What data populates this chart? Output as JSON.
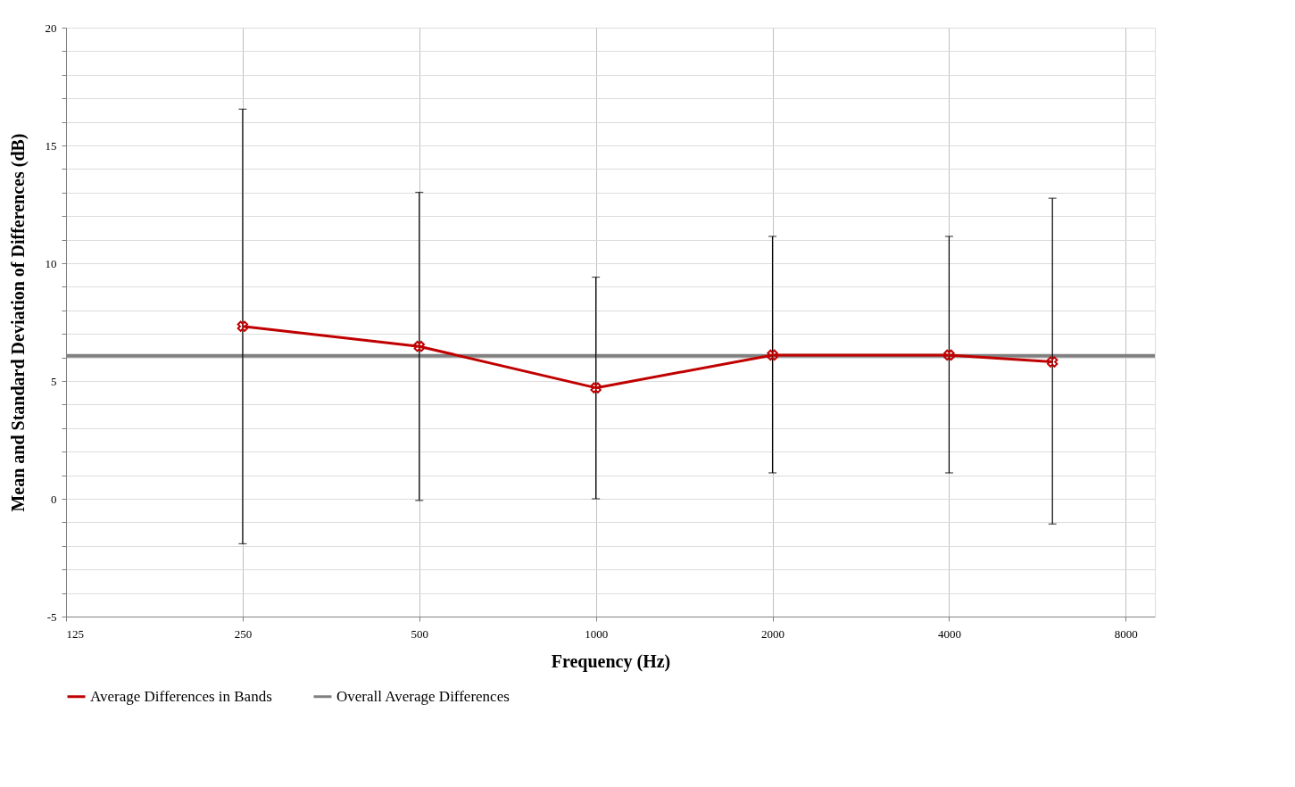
{
  "chart_data": {
    "type": "line",
    "xlabel": "Frequency (Hz)",
    "ylabel": "Mean and Standard Deviation of Differences (dB)",
    "x": [
      250,
      500,
      1000,
      2000,
      4000,
      6000
    ],
    "series": [
      {
        "name": "Average Differences in Bands",
        "color": "#c00000",
        "values": [
          7.32,
          6.47,
          4.71,
          6.1,
          6.1,
          5.81
        ],
        "errors": [
          [
            -1.91,
            16.54
          ],
          [
            -0.07,
            13.01
          ],
          [
            0.0,
            9.41
          ],
          [
            1.1,
            11.14
          ],
          [
            1.1,
            11.14
          ],
          [
            -1.07,
            12.76
          ]
        ]
      }
    ],
    "ref_lines": [
      {
        "axis": "y",
        "value": 6.07,
        "label": "Overall Average Differences",
        "color": "#808080"
      }
    ],
    "log": "x",
    "xlim": [
      125,
      8970
    ],
    "xticks": [
      125,
      250,
      500,
      1000,
      2000,
      4000,
      8000
    ],
    "ylim": [
      -5,
      20
    ],
    "yticks": [
      -5,
      {
        "value": -4,
        "label": null
      },
      {
        "value": -3,
        "label": null
      },
      {
        "value": -2,
        "label": null
      },
      {
        "value": -1,
        "label": null
      },
      0,
      {
        "value": 1,
        "label": null
      },
      {
        "value": 2,
        "label": null
      },
      {
        "value": 3,
        "label": null
      },
      {
        "value": 4,
        "label": null
      },
      5,
      {
        "value": 6,
        "label": null
      },
      {
        "value": 7,
        "label": null
      },
      {
        "value": 8,
        "label": null
      },
      {
        "value": 9,
        "label": null
      },
      10,
      {
        "value": 11,
        "label": null
      },
      {
        "value": 12,
        "label": null
      },
      {
        "value": 13,
        "label": null
      },
      {
        "value": 14,
        "label": null
      },
      15,
      {
        "value": 16,
        "label": null
      },
      {
        "value": 17,
        "label": null
      },
      {
        "value": 18,
        "label": null
      },
      {
        "value": 19,
        "label": null
      },
      20
    ],
    "grid": true,
    "legend": "bottom",
    "marker": "cross",
    "line_style": "solid"
  }
}
